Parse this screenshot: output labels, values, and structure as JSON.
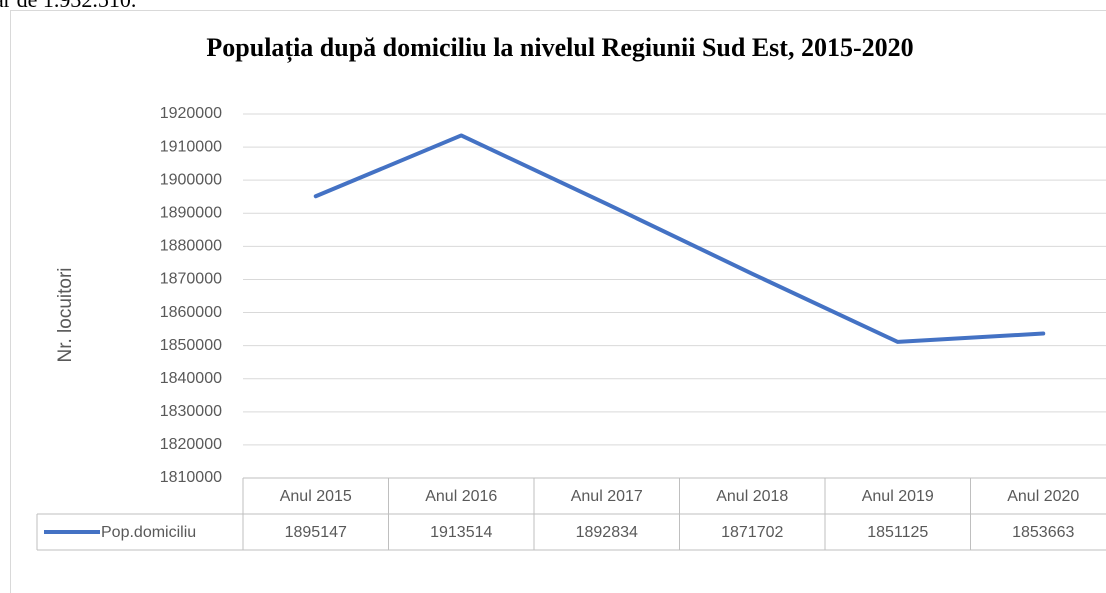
{
  "page_text": "ar de 1.932.510.",
  "chart_data": {
    "type": "line",
    "title": "Populația după domiciliu la nivelul Regiunii Sud Est, 2015-2020",
    "y_label": "Nr. locuitori",
    "categories": [
      "Anul 2015",
      "Anul 2016",
      "Anul 2017",
      "Anul 2018",
      "Anul 2019",
      "Anul 2020"
    ],
    "series": [
      {
        "name": "Pop.domiciliu",
        "color": "#4472c4",
        "values": [
          1895147,
          1913514,
          1892834,
          1871702,
          1851125,
          1853663
        ]
      }
    ],
    "ylim": [
      1810000,
      1920000
    ],
    "yticks": [
      1810000,
      1820000,
      1830000,
      1840000,
      1850000,
      1860000,
      1870000,
      1880000,
      1890000,
      1900000,
      1910000,
      1920000
    ],
    "grid": true,
    "data_table": true
  }
}
